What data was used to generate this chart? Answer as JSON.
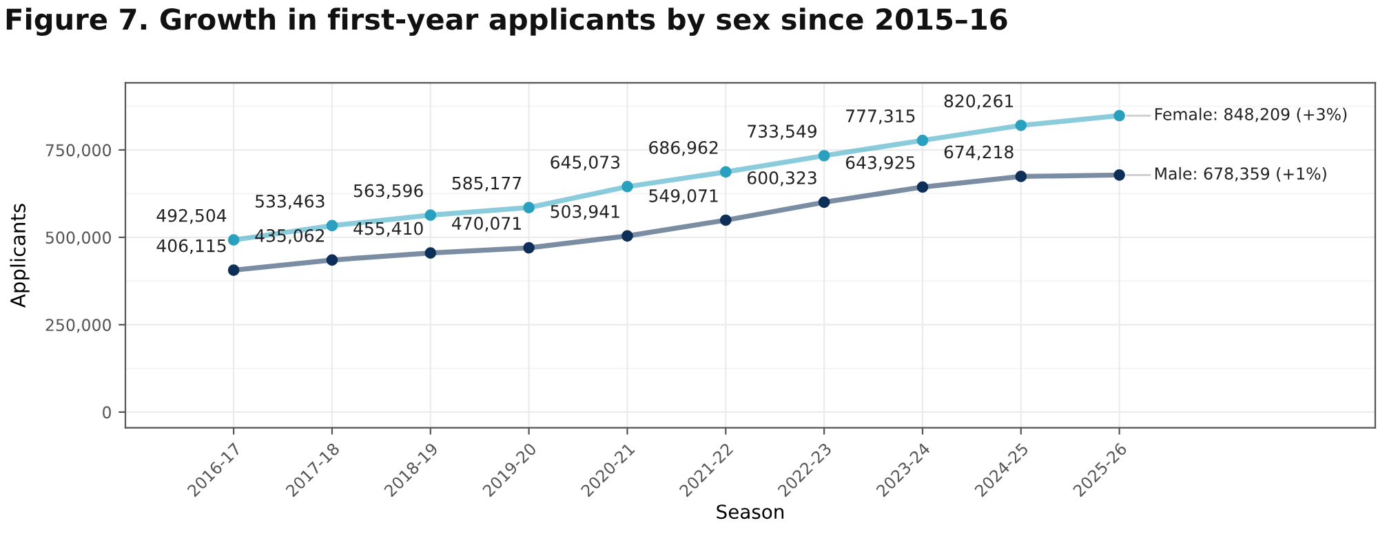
{
  "chart_data": {
    "type": "line",
    "title": "Figure 7. Growth in first-year applicants by sex since 2015–16",
    "xlabel": "Season",
    "ylabel": "Applicants",
    "categories": [
      "2016-17",
      "2017-18",
      "2018-19",
      "2019-20",
      "2020-21",
      "2021-22",
      "2022-23",
      "2023-24",
      "2024-25",
      "2025-26"
    ],
    "series": [
      {
        "name": "Female: 848,209 (+3%)",
        "color": "#2aa0bf",
        "values": [
          492504,
          533463,
          563596,
          585177,
          645073,
          686962,
          733549,
          777315,
          820261,
          848209
        ],
        "value_labels": [
          "492,504",
          "533,463",
          "563,596",
          "585,177",
          "645,073",
          "686,962",
          "733,549",
          "777,315",
          "820,261",
          null
        ]
      },
      {
        "name": "Male: 678,359 (+1%)",
        "color": "#0e2f57",
        "values": [
          406115,
          435062,
          455410,
          470071,
          503941,
          549071,
          600323,
          643925,
          674218,
          678359
        ],
        "value_labels": [
          "406,115",
          "435,062",
          "455,410",
          "470,071",
          "503,941",
          "549,071",
          "600,323",
          "643,925",
          "674,218",
          null
        ]
      }
    ],
    "ylim": [
      -45000,
      942000
    ],
    "yticks": [
      {
        "value": 0,
        "label": "0"
      },
      {
        "value": 250000,
        "label": "250,000"
      },
      {
        "value": 500000,
        "label": "500,000"
      },
      {
        "value": 750000,
        "label": "750,000"
      }
    ],
    "grid": true,
    "legend": false,
    "marker": "circle",
    "line_style": "solid"
  }
}
